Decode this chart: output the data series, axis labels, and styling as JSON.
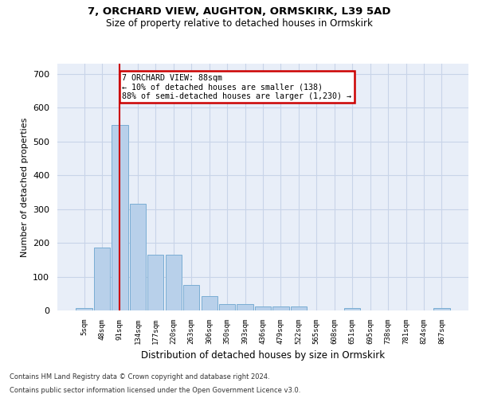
{
  "title1": "7, ORCHARD VIEW, AUGHTON, ORMSKIRK, L39 5AD",
  "title2": "Size of property relative to detached houses in Ormskirk",
  "xlabel": "Distribution of detached houses by size in Ormskirk",
  "ylabel": "Number of detached properties",
  "footnote1": "Contains HM Land Registry data © Crown copyright and database right 2024.",
  "footnote2": "Contains public sector information licensed under the Open Government Licence v3.0.",
  "bar_labels": [
    "5sqm",
    "48sqm",
    "91sqm",
    "134sqm",
    "177sqm",
    "220sqm",
    "263sqm",
    "306sqm",
    "350sqm",
    "393sqm",
    "436sqm",
    "479sqm",
    "522sqm",
    "565sqm",
    "608sqm",
    "651sqm",
    "695sqm",
    "738sqm",
    "781sqm",
    "824sqm",
    "867sqm"
  ],
  "bar_values": [
    8,
    185,
    549,
    315,
    165,
    165,
    75,
    42,
    18,
    18,
    12,
    12,
    12,
    0,
    0,
    8,
    0,
    0,
    0,
    0,
    8
  ],
  "bar_color": "#b8d0ea",
  "bar_edge_color": "#7aadd4",
  "annotation_text": "7 ORCHARD VIEW: 88sqm\n← 10% of detached houses are smaller (138)\n88% of semi-detached houses are larger (1,230) →",
  "annotation_box_color": "#ffffff",
  "annotation_box_edge_color": "#cc0000",
  "annotation_line_color": "#cc0000",
  "grid_color": "#c8d4e8",
  "background_color": "#e8eef8",
  "ylim_max": 730,
  "yticks": [
    0,
    100,
    200,
    300,
    400,
    500,
    600,
    700
  ]
}
